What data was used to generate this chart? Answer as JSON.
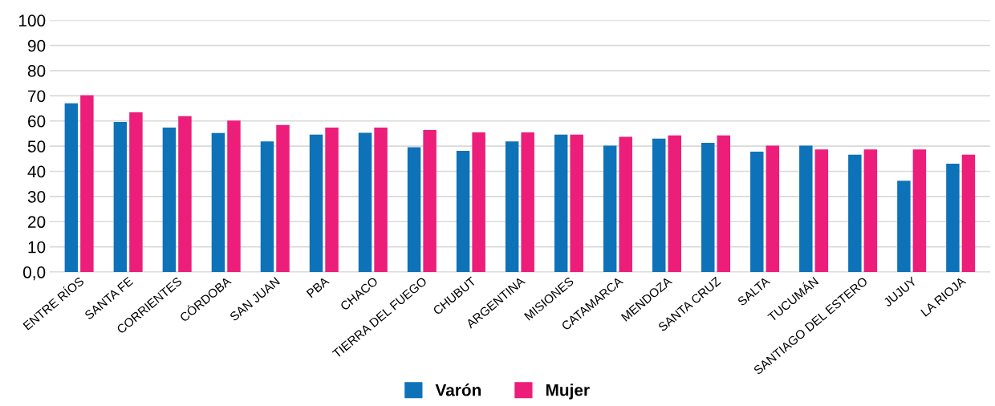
{
  "chart_data": {
    "type": "bar",
    "categories": [
      "ENTRE RÍOS",
      "SANTA FE",
      "CORRIENTES",
      "CÓRDOBA",
      "SAN JUAN",
      "PBA",
      "CHACO",
      "TIERRA DEL FUEGO",
      "CHUBUT",
      "ARGENTINA",
      "MISIONES",
      "CATAMARCA",
      "MENDOZA",
      "SANTA CRUZ",
      "SALTA",
      "TUCUMÁN",
      "SANTIAGO DEL ESTERO",
      "JUJUY",
      "LA RIOJA"
    ],
    "series": [
      {
        "name": "Varón",
        "color": "#0e72b9",
        "values": [
          67.0,
          59.6,
          57.4,
          55.2,
          51.9,
          54.6,
          55.3,
          49.6,
          48.1,
          51.9,
          54.6,
          50.2,
          53.0,
          51.3,
          47.8,
          50.2,
          46.6,
          36.3,
          43.0
        ]
      },
      {
        "name": "Mujer",
        "color": "#ec1e7a",
        "values": [
          70.2,
          63.4,
          61.9,
          60.2,
          58.4,
          57.4,
          57.4,
          56.4,
          55.5,
          55.5,
          54.6,
          53.7,
          54.3,
          54.3,
          50.2,
          48.7,
          48.7,
          48.7,
          46.6
        ]
      }
    ],
    "ylim": [
      0,
      100
    ],
    "yticks": [
      {
        "value": 0,
        "label": "0,0"
      },
      10,
      20,
      30,
      40,
      50,
      60,
      70,
      80,
      90,
      100
    ],
    "grid": "y",
    "legend": "bottom"
  }
}
